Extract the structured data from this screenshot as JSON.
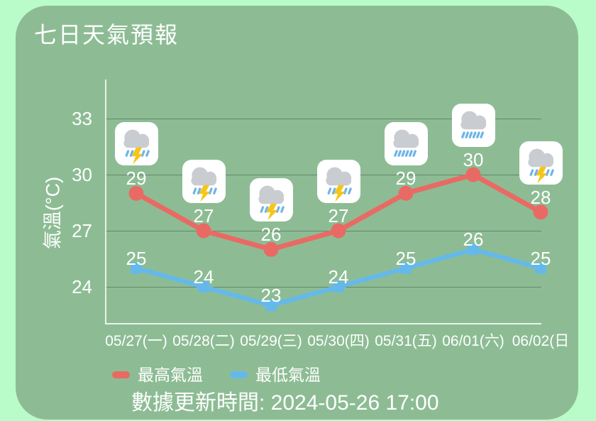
{
  "colors": {
    "page_bg": "#b9fbc9",
    "card_bg": "#8dbc94",
    "text": "#ffffff",
    "grid_line": "rgba(0,0,0,0.28)",
    "axis_line": "rgba(255,255,255,0.8)",
    "icon_bg": "#ffffff",
    "cloud": "#c9cdd2",
    "rain_drop": "#6db5e8",
    "lightning": "#f6c51a"
  },
  "chart_data": {
    "type": "line",
    "title": "七日天氣預報",
    "ylabel": "氣溫(°C)",
    "categories": [
      "05/27(一)",
      "05/28(二)",
      "05/29(三)",
      "05/30(四)",
      "05/31(五)",
      "06/01(六)",
      "06/02(日"
    ],
    "yticks": [
      24,
      27,
      30,
      33
    ],
    "ylim": [
      22,
      35
    ],
    "grid": true,
    "legend_position": "bottom",
    "series": [
      {
        "name": "最高氣溫",
        "color": "#e96a64",
        "marker": "circle",
        "values": [
          29,
          27,
          26,
          27,
          29,
          30,
          28
        ]
      },
      {
        "name": "最低氣溫",
        "color": "#65b9ea",
        "marker": "square",
        "values": [
          25,
          24,
          23,
          24,
          25,
          26,
          25
        ]
      }
    ],
    "icons": [
      "thunderstorm",
      "thunderstorm",
      "thunderstorm",
      "thunderstorm",
      "rain",
      "rain",
      "thunderstorm"
    ]
  },
  "footer": {
    "update_time": "數據更新時間: 2024-05-26 17:00"
  }
}
